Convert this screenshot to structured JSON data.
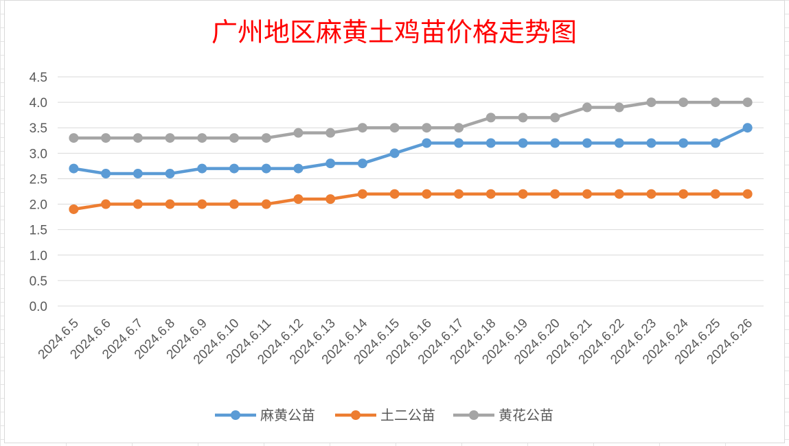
{
  "chart_data": {
    "type": "line",
    "title": "广州地区麻黄土鸡苗价格走势图",
    "title_color": "#ff0000",
    "categories": [
      "2024.6.5",
      "2024.6.6",
      "2024.6.7",
      "2024.6.8",
      "2024.6.9",
      "2024.6.10",
      "2024.6.11",
      "2024.6.12",
      "2024.6.13",
      "2024.6.14",
      "2024.6.15",
      "2024.6.16",
      "2024.6.17",
      "2024.6.18",
      "2024.6.19",
      "2024.6.20",
      "2024.6.21",
      "2024.6.22",
      "2024.6.23",
      "2024.6.24",
      "2024.6.25",
      "2024.6.26"
    ],
    "series": [
      {
        "name": "麻黄公苗",
        "color": "#5b9bd5",
        "values": [
          2.7,
          2.6,
          2.6,
          2.6,
          2.7,
          2.7,
          2.7,
          2.7,
          2.8,
          2.8,
          3.0,
          3.2,
          3.2,
          3.2,
          3.2,
          3.2,
          3.2,
          3.2,
          3.2,
          3.2,
          3.2,
          3.5
        ]
      },
      {
        "name": "土二公苗",
        "color": "#ed7d31",
        "values": [
          1.9,
          2.0,
          2.0,
          2.0,
          2.0,
          2.0,
          2.0,
          2.1,
          2.1,
          2.2,
          2.2,
          2.2,
          2.2,
          2.2,
          2.2,
          2.2,
          2.2,
          2.2,
          2.2,
          2.2,
          2.2,
          2.2
        ]
      },
      {
        "name": "黄花公苗",
        "color": "#a5a5a5",
        "values": [
          3.3,
          3.3,
          3.3,
          3.3,
          3.3,
          3.3,
          3.3,
          3.4,
          3.4,
          3.5,
          3.5,
          3.5,
          3.5,
          3.7,
          3.7,
          3.7,
          3.9,
          3.9,
          4.0,
          4.0,
          4.0,
          4.0
        ]
      }
    ],
    "ylim": [
      0,
      4.5
    ],
    "yticks": [
      "0.0",
      "0.5",
      "1.0",
      "1.5",
      "2.0",
      "2.5",
      "3.0",
      "3.5",
      "4.0",
      "4.5"
    ],
    "grid": true,
    "legend_position": "bottom",
    "xlabel": "",
    "ylabel": ""
  }
}
